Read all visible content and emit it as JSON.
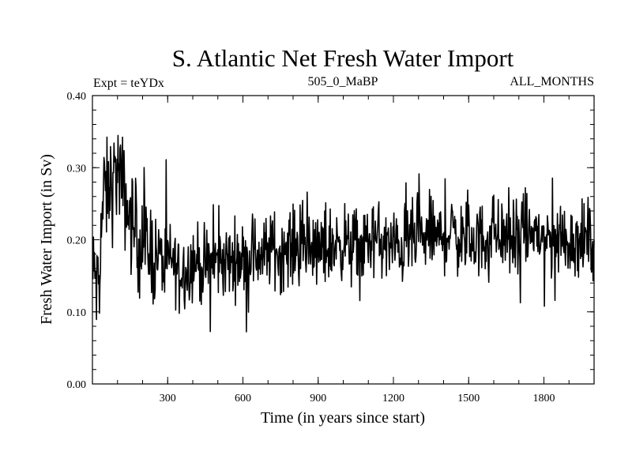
{
  "chart_data": {
    "type": "line",
    "title": "S. Atlantic Net Fresh Water Import",
    "experiment": "Expt = teYDx",
    "period": "505_0_MaBP",
    "months": "ALL_MONTHS",
    "xlabel": "Time (in years since start)",
    "ylabel": "Fresh Water Import (in Sv)",
    "xlim": [
      0,
      2000
    ],
    "ylim": [
      0,
      0.4
    ],
    "x_ticks": [
      300,
      600,
      900,
      1200,
      1500,
      1800
    ],
    "x_tick_labels": [
      "300",
      "600",
      "900",
      "1200",
      "1500",
      "1800"
    ],
    "y_ticks": [
      0,
      0.1,
      0.2,
      0.3,
      0.4
    ],
    "y_tick_labels": [
      "0.00",
      "0.10",
      "0.20",
      "0.30",
      "0.40"
    ],
    "line_color": "#000000",
    "series": [
      {
        "name": "Net fresh water import",
        "x": [
          0,
          10,
          20,
          30,
          40,
          50,
          60,
          70,
          80,
          90,
          100,
          110,
          120,
          130,
          140,
          150,
          160,
          170,
          180,
          190,
          200,
          220,
          240,
          260,
          280,
          300,
          320,
          340,
          360,
          380,
          400,
          420,
          440,
          460,
          480,
          500,
          520,
          540,
          560,
          580,
          600,
          630,
          660,
          690,
          720,
          750,
          780,
          810,
          840,
          870,
          900,
          930,
          960,
          990,
          1020,
          1050,
          1080,
          1110,
          1140,
          1170,
          1200,
          1230,
          1260,
          1290,
          1320,
          1350,
          1380,
          1410,
          1440,
          1470,
          1500,
          1530,
          1560,
          1590,
          1620,
          1650,
          1680,
          1710,
          1740,
          1770,
          1800,
          1830,
          1860,
          1890,
          1920,
          1950,
          1980,
          2000
        ],
        "values": [
          0.14,
          0.16,
          0.12,
          0.19,
          0.24,
          0.27,
          0.26,
          0.28,
          0.27,
          0.29,
          0.3,
          0.28,
          0.27,
          0.26,
          0.24,
          0.23,
          0.22,
          0.21,
          0.21,
          0.2,
          0.19,
          0.19,
          0.18,
          0.18,
          0.17,
          0.17,
          0.17,
          0.16,
          0.16,
          0.16,
          0.17,
          0.17,
          0.16,
          0.16,
          0.17,
          0.17,
          0.17,
          0.17,
          0.17,
          0.18,
          0.17,
          0.18,
          0.18,
          0.18,
          0.19,
          0.18,
          0.19,
          0.19,
          0.19,
          0.19,
          0.18,
          0.19,
          0.19,
          0.2,
          0.19,
          0.19,
          0.19,
          0.2,
          0.2,
          0.19,
          0.19,
          0.19,
          0.2,
          0.2,
          0.2,
          0.21,
          0.2,
          0.21,
          0.21,
          0.2,
          0.2,
          0.2,
          0.2,
          0.21,
          0.21,
          0.2,
          0.2,
          0.2,
          0.21,
          0.21,
          0.2,
          0.2,
          0.2,
          0.2,
          0.2,
          0.2,
          0.2,
          0.2
        ]
      }
    ]
  }
}
